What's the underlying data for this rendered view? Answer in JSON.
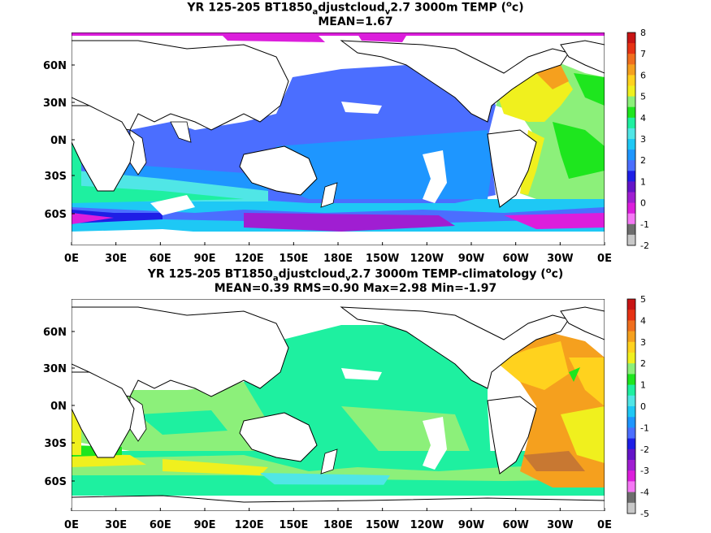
{
  "panels": [
    {
      "title_prefix": "YR 125-205 BT1850",
      "title_sub": "a",
      "title_mid1": "djustcloud",
      "title_sub2": "v",
      "title_mid2": "2.7 3000m TEMP (",
      "title_sup": "o",
      "title_end": "c)",
      "stats": "MEAN=1.67",
      "colorbar": {
        "ticks": [
          "8",
          "7",
          "6",
          "5",
          "4",
          "3",
          "2",
          "1",
          "0",
          "-1",
          "-2"
        ],
        "colors": [
          "#c81414",
          "#e63214",
          "#f06e1e",
          "#f5a01e",
          "#ffd21e",
          "#f0f01e",
          "#8cf07a",
          "#1ee61e",
          "#1ef0a0",
          "#50e6e6",
          "#1ec8f5",
          "#1e96ff",
          "#4b6eff",
          "#1e1ee6",
          "#6414c8",
          "#a01ed2",
          "#dc1edc",
          "#f578f5",
          "#6e6e6e",
          "#c8c8c8"
        ]
      },
      "chart_data": {
        "type": "heatmap",
        "variable": "3000m TEMP",
        "unit": "oc",
        "mean": 1.67,
        "x_ticks": [
          "0E",
          "30E",
          "60E",
          "90E",
          "120E",
          "150E",
          "180E",
          "150W",
          "120W",
          "90W",
          "60W",
          "30W",
          "0E"
        ],
        "y_ticks": [
          "60N",
          "30N",
          "0N",
          "30S",
          "60S"
        ],
        "color_range": [
          -2,
          8
        ]
      }
    },
    {
      "title_prefix": "YR 125-205 BT1850",
      "title_sub": "a",
      "title_mid1": "djustcloud",
      "title_sub2": "v",
      "title_mid2": "2.7 3000m TEMP-climatology (",
      "title_sup": "o",
      "title_end": "c)",
      "stats": "MEAN=0.39   RMS=0.90   Max=2.98   Min=-1.97",
      "colorbar": {
        "ticks": [
          "5",
          "4",
          "3",
          "2",
          "1",
          "0",
          "-1",
          "-2",
          "-3",
          "-4",
          "-5"
        ],
        "colors": [
          "#c81414",
          "#e63214",
          "#f06e1e",
          "#f5a01e",
          "#ffd21e",
          "#f0f01e",
          "#8cf07a",
          "#1ee61e",
          "#1ef0a0",
          "#50e6e6",
          "#1ec8f5",
          "#1e96ff",
          "#4b6eff",
          "#1e1ee6",
          "#6414c8",
          "#a01ed2",
          "#dc1edc",
          "#f578f5",
          "#6e6e6e",
          "#c8c8c8"
        ]
      },
      "chart_data": {
        "type": "heatmap",
        "variable": "3000m TEMP-climatology",
        "unit": "oc",
        "mean": 0.39,
        "rms": 0.9,
        "max": 2.98,
        "min": -1.97,
        "x_ticks": [
          "0E",
          "30E",
          "60E",
          "90E",
          "120E",
          "150E",
          "180E",
          "150W",
          "120W",
          "90W",
          "60W",
          "30W",
          "0E"
        ],
        "y_ticks": [
          "60N",
          "30N",
          "0N",
          "30S",
          "60S"
        ],
        "color_range": [
          -5,
          5
        ]
      }
    }
  ]
}
